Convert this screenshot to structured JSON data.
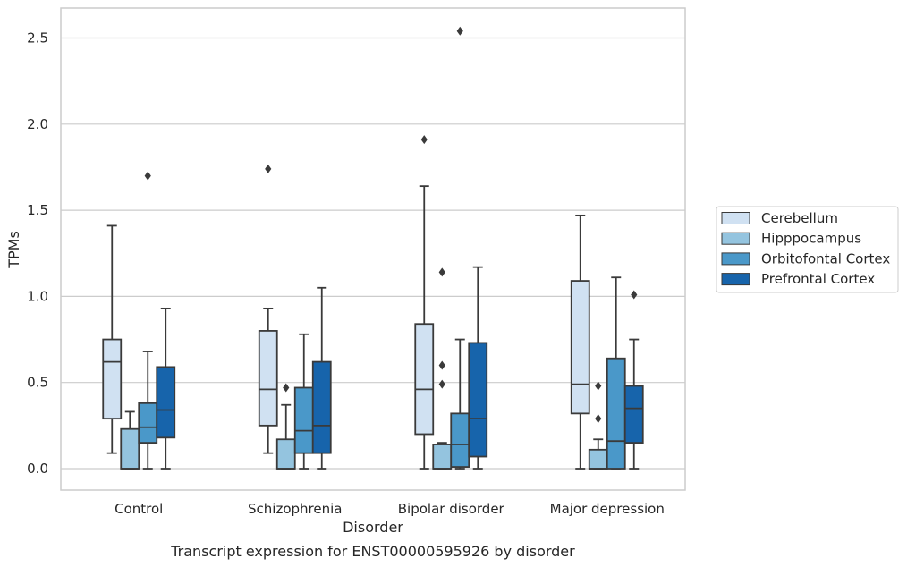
{
  "chart_data": {
    "type": "box",
    "caption": "Transcript expression for ENST00000595926 by disorder",
    "xlabel": "Disorder",
    "ylabel": "TPMs",
    "ylim": [
      -0.12,
      2.67
    ],
    "yticks": [
      0.0,
      0.5,
      1.0,
      1.5,
      2.0,
      2.5
    ],
    "ytick_labels": [
      "0.0",
      "0.5",
      "1.0",
      "1.5",
      "2.0",
      "2.5"
    ],
    "grid": "horizontal",
    "legend_position": "right",
    "categories": [
      "Control",
      "Schizophrenia",
      "Bipolar disorder",
      "Major depression"
    ],
    "series": [
      {
        "name": "Cerebellum",
        "color": "#d0e1f2",
        "boxes": [
          {
            "whislo": 0.09,
            "q1": 0.29,
            "med": 0.62,
            "q3": 0.75,
            "whishi": 1.41,
            "fliers": []
          },
          {
            "whislo": 0.09,
            "q1": 0.25,
            "med": 0.46,
            "q3": 0.8,
            "whishi": 0.93,
            "fliers": [
              1.74
            ]
          },
          {
            "whislo": 0.0,
            "q1": 0.2,
            "med": 0.46,
            "q3": 0.84,
            "whishi": 1.64,
            "fliers": [
              1.91
            ]
          },
          {
            "whislo": 0.0,
            "q1": 0.32,
            "med": 0.49,
            "q3": 1.09,
            "whishi": 1.47,
            "fliers": []
          }
        ]
      },
      {
        "name": "Hipppocampus",
        "color": "#94c4df",
        "boxes": [
          {
            "whislo": 0.0,
            "q1": 0.0,
            "med": 0.0,
            "q3": 0.23,
            "whishi": 0.33,
            "fliers": []
          },
          {
            "whislo": 0.0,
            "q1": 0.0,
            "med": 0.0,
            "q3": 0.17,
            "whishi": 0.37,
            "fliers": [
              0.47
            ]
          },
          {
            "whislo": 0.0,
            "q1": 0.0,
            "med": 0.0,
            "q3": 0.14,
            "whishi": 0.15,
            "fliers": [
              0.49,
              0.6,
              1.14
            ]
          },
          {
            "whislo": 0.0,
            "q1": 0.0,
            "med": 0.0,
            "q3": 0.11,
            "whishi": 0.17,
            "fliers": [
              0.29,
              0.48
            ]
          }
        ]
      },
      {
        "name": "Orbitofontal Cortex",
        "color": "#4a98c9",
        "boxes": [
          {
            "whislo": 0.0,
            "q1": 0.15,
            "med": 0.24,
            "q3": 0.38,
            "whishi": 0.68,
            "fliers": [
              1.7
            ]
          },
          {
            "whislo": 0.0,
            "q1": 0.09,
            "med": 0.22,
            "q3": 0.47,
            "whishi": 0.78,
            "fliers": []
          },
          {
            "whislo": 0.0,
            "q1": 0.01,
            "med": 0.14,
            "q3": 0.32,
            "whishi": 0.75,
            "fliers": [
              2.54
            ]
          },
          {
            "whislo": 0.0,
            "q1": 0.0,
            "med": 0.16,
            "q3": 0.64,
            "whishi": 1.11,
            "fliers": []
          }
        ]
      },
      {
        "name": "Prefrontal Cortex",
        "color": "#1764ab",
        "boxes": [
          {
            "whislo": 0.0,
            "q1": 0.18,
            "med": 0.34,
            "q3": 0.59,
            "whishi": 0.93,
            "fliers": []
          },
          {
            "whislo": 0.0,
            "q1": 0.09,
            "med": 0.25,
            "q3": 0.62,
            "whishi": 1.05,
            "fliers": []
          },
          {
            "whislo": 0.0,
            "q1": 0.07,
            "med": 0.29,
            "q3": 0.73,
            "whishi": 1.17,
            "fliers": []
          },
          {
            "whislo": 0.0,
            "q1": 0.15,
            "med": 0.35,
            "q3": 0.48,
            "whishi": 0.75,
            "fliers": [
              1.01
            ]
          }
        ]
      }
    ]
  }
}
